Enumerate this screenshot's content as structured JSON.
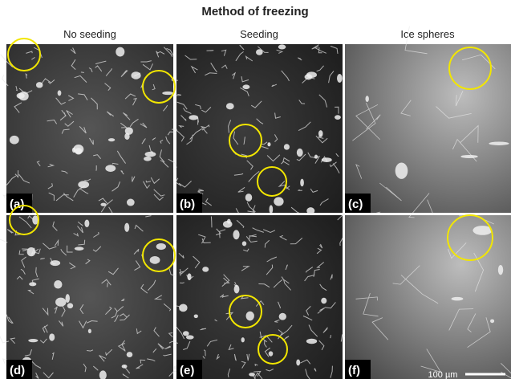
{
  "header": {
    "title": "Method of freezing"
  },
  "columns": [
    "No seeding",
    "Seeding",
    "Ice spheres"
  ],
  "panels": [
    {
      "label": "(a)"
    },
    {
      "label": "(b)"
    },
    {
      "label": "(c)"
    },
    {
      "label": "(d)"
    },
    {
      "label": "(e)"
    },
    {
      "label": "(f)"
    }
  ],
  "scale_bar": {
    "label": "100 µm"
  }
}
